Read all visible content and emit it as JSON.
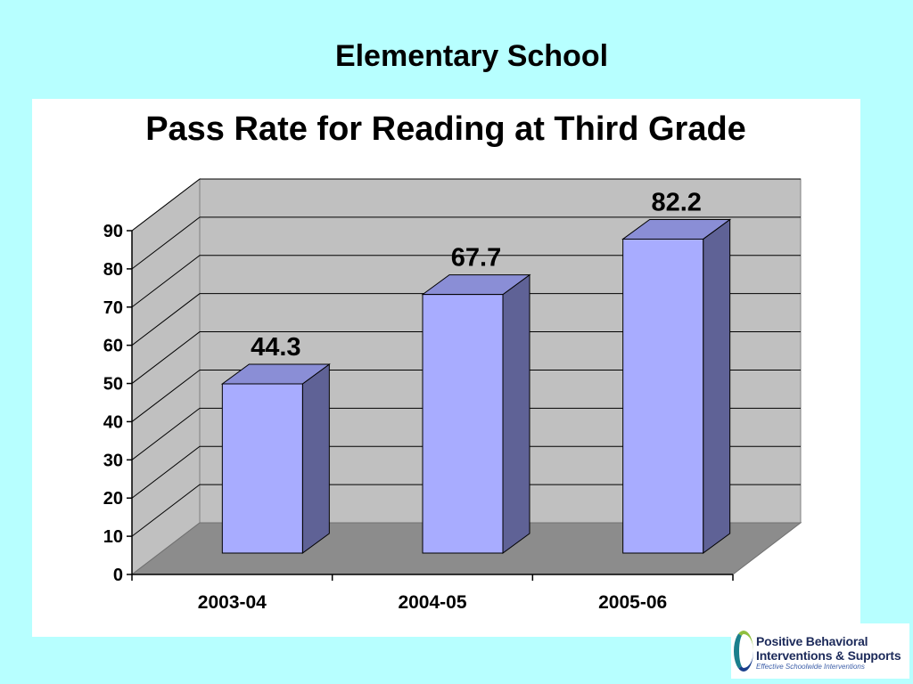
{
  "slide": {
    "title": "Elementary School"
  },
  "chart_data": {
    "type": "bar",
    "title": "Pass Rate for Reading at Third Grade",
    "categories": [
      "2003-04",
      "2004-05",
      "2005-06"
    ],
    "values": [
      44.3,
      67.7,
      82.2
    ],
    "value_labels": [
      "44.3",
      "67.7",
      "82.2"
    ],
    "ylim": [
      0,
      90
    ],
    "yticks": [
      0,
      10,
      20,
      30,
      40,
      50,
      60,
      70,
      80,
      90
    ],
    "xlabel": "",
    "ylabel": "",
    "grid": true,
    "legend": "none",
    "style": "3d",
    "colors": {
      "bar_front": "#a8acff",
      "bar_side": "#5f6296",
      "bar_top": "#8a8ed6",
      "back_wall": "#c0c0c0",
      "floor": "#8c8c8c",
      "panel_bg": "#ffffff",
      "page_bg": "#b7ffff"
    }
  },
  "logo": {
    "line1": "Positive Behavioral",
    "line2": "Interventions & Supports",
    "line3": "Effective Schoolwide Interventions"
  }
}
